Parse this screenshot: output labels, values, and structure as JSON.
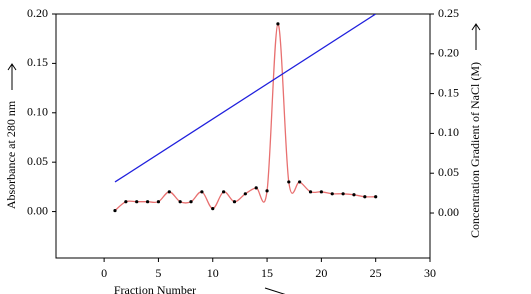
{
  "chart_data": {
    "type": "line",
    "xlabel": "Fraction Number",
    "ylabel": "Absorbance at 280 nm",
    "y2label": "Concentration Gradient of NaCl (M)",
    "xlim": [
      -4.43,
      30
    ],
    "xticks": [
      0,
      5,
      10,
      15,
      20,
      25,
      30
    ],
    "ylim": [
      -0.047,
      0.2
    ],
    "yticks": [
      {
        "value": 0,
        "label": "0.00"
      },
      {
        "value": 0.05,
        "label": "0.05"
      },
      {
        "value": 0.1,
        "label": "0.10"
      },
      {
        "value": 0.15,
        "label": "0.15"
      },
      {
        "value": 0.2,
        "label": "0.20"
      }
    ],
    "y2lim": [
      -0.0565,
      0.25
    ],
    "y2ticks": [
      {
        "value": 0,
        "label": "0.00"
      },
      {
        "value": 0.05,
        "label": "0.05"
      },
      {
        "value": 0.1,
        "label": "0.10"
      },
      {
        "value": 0.15,
        "label": "0.15"
      },
      {
        "value": 0.2,
        "label": "0.20"
      },
      {
        "value": 0.25,
        "label": "0.25"
      }
    ],
    "series": [
      {
        "color": "#e87070",
        "marker_color": "#000000",
        "smooth": true,
        "x": [
          1,
          2,
          3,
          4,
          5,
          6,
          7,
          8,
          9,
          10,
          11,
          12,
          13,
          14,
          15,
          16,
          17,
          18,
          19,
          20,
          21,
          22,
          23,
          24,
          25
        ],
        "values": [
          0.001,
          0.01,
          0.01,
          0.01,
          0.01,
          0.02,
          0.01,
          0.01,
          0.02,
          0.003,
          0.02,
          0.01,
          0.018,
          0.024,
          0.021,
          0.19,
          0.03,
          0.03,
          0.02,
          0.02,
          0.018,
          0.018,
          0.017,
          0.015,
          0.015
        ]
      },
      {
        "color": "#2020dd",
        "axis": "y2",
        "x": [
          1,
          25
        ],
        "values": [
          0.039,
          0.25
        ]
      }
    ]
  }
}
